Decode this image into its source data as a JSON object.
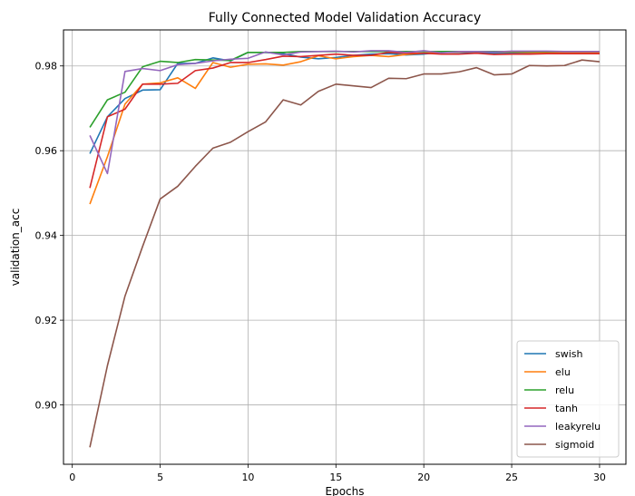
{
  "chart_data": {
    "type": "line",
    "title": "Fully Connected Model Validation Accuracy",
    "xlabel": "Epochs",
    "ylabel": "validation_acc",
    "xlim": [
      -0.5,
      31.5
    ],
    "ylim": [
      0.886,
      0.9885
    ],
    "xticks": [
      0,
      5,
      10,
      15,
      20,
      25,
      30
    ],
    "xtick_labels": [
      "0",
      "5",
      "10",
      "15",
      "20",
      "25",
      "30"
    ],
    "yticks": [
      0.9,
      0.92,
      0.94,
      0.96,
      0.98
    ],
    "ytick_labels": [
      "0.90",
      "0.92",
      "0.94",
      "0.96",
      "0.98"
    ],
    "grid": true,
    "legend_position": "lower-right",
    "x": [
      1,
      2,
      3,
      4,
      5,
      6,
      7,
      8,
      9,
      10,
      11,
      12,
      13,
      14,
      15,
      16,
      17,
      18,
      19,
      20,
      21,
      22,
      23,
      24,
      25,
      26,
      27,
      28,
      29,
      30
    ],
    "series": [
      {
        "name": "swish",
        "color": "#1f77b4",
        "values": [
          0.9593,
          0.968,
          0.9723,
          0.9743,
          0.9744,
          0.9806,
          0.9806,
          0.9819,
          0.9812,
          0.9832,
          0.9832,
          0.9829,
          0.9821,
          0.9817,
          0.982,
          0.9825,
          0.9828,
          0.9829,
          0.9826,
          0.9828,
          0.9832,
          0.9832,
          0.9832,
          0.983,
          0.9831,
          0.9831,
          0.9832,
          0.9831,
          0.983,
          0.983
        ]
      },
      {
        "name": "elu",
        "color": "#ff7f0e",
        "values": [
          0.9474,
          0.9586,
          0.971,
          0.9757,
          0.976,
          0.9772,
          0.9747,
          0.9808,
          0.9797,
          0.9804,
          0.9805,
          0.9802,
          0.981,
          0.9824,
          0.9817,
          0.9822,
          0.9825,
          0.9822,
          0.9827,
          0.983,
          0.9832,
          0.9833,
          0.9834,
          0.9833,
          0.9833,
          0.9832,
          0.9832,
          0.9832,
          0.9832,
          0.9832
        ]
      },
      {
        "name": "relu",
        "color": "#2ca02c",
        "values": [
          0.9655,
          0.972,
          0.9738,
          0.9798,
          0.9811,
          0.9808,
          0.9815,
          0.9814,
          0.9813,
          0.9832,
          0.9832,
          0.9832,
          0.9834,
          0.9834,
          0.9834,
          0.9834,
          0.9834,
          0.9834,
          0.9834,
          0.9834,
          0.9834,
          0.9834,
          0.9834,
          0.9834,
          0.9834,
          0.9834,
          0.9834,
          0.9834,
          0.9834,
          0.9834
        ]
      },
      {
        "name": "tanh",
        "color": "#d62728",
        "values": [
          0.9512,
          0.968,
          0.9698,
          0.9757,
          0.9757,
          0.9759,
          0.9789,
          0.9795,
          0.9808,
          0.9808,
          0.9815,
          0.9823,
          0.9822,
          0.9825,
          0.9828,
          0.9825,
          0.9825,
          0.9832,
          0.983,
          0.983,
          0.9828,
          0.9828,
          0.983,
          0.9827,
          0.9828,
          0.9828,
          0.9829,
          0.9829,
          0.9829,
          0.9829
        ]
      },
      {
        "name": "leakyrelu",
        "color": "#9467bd",
        "values": [
          0.9636,
          0.9546,
          0.9787,
          0.9794,
          0.9789,
          0.9803,
          0.9806,
          0.9812,
          0.9816,
          0.9818,
          0.9833,
          0.9826,
          0.9833,
          0.9834,
          0.9835,
          0.9833,
          0.9836,
          0.9836,
          0.9832,
          0.9836,
          0.9831,
          0.9834,
          0.9834,
          0.9833,
          0.9835,
          0.9835,
          0.9835,
          0.9834,
          0.9834,
          0.9834
        ]
      },
      {
        "name": "sigmoid",
        "color": "#8c564b",
        "values": [
          0.89,
          0.9093,
          0.9257,
          0.9374,
          0.9486,
          0.9516,
          0.9563,
          0.9606,
          0.962,
          0.9645,
          0.9668,
          0.972,
          0.9708,
          0.974,
          0.9757,
          0.9753,
          0.9749,
          0.9771,
          0.977,
          0.9781,
          0.9781,
          0.9786,
          0.9796,
          0.9779,
          0.9781,
          0.9801,
          0.98,
          0.9801,
          0.9814,
          0.981
        ]
      }
    ]
  }
}
